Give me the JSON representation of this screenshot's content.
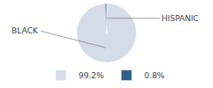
{
  "chart_data": {
    "type": "pie",
    "categories": [
      "BLACK",
      "HISPANIC"
    ],
    "values": [
      99.2,
      0.8
    ],
    "value_labels": [
      "99.2%",
      "0.8%"
    ],
    "colors": [
      "#d4dce8",
      "#2d5f8a"
    ],
    "legend": "bottom"
  }
}
